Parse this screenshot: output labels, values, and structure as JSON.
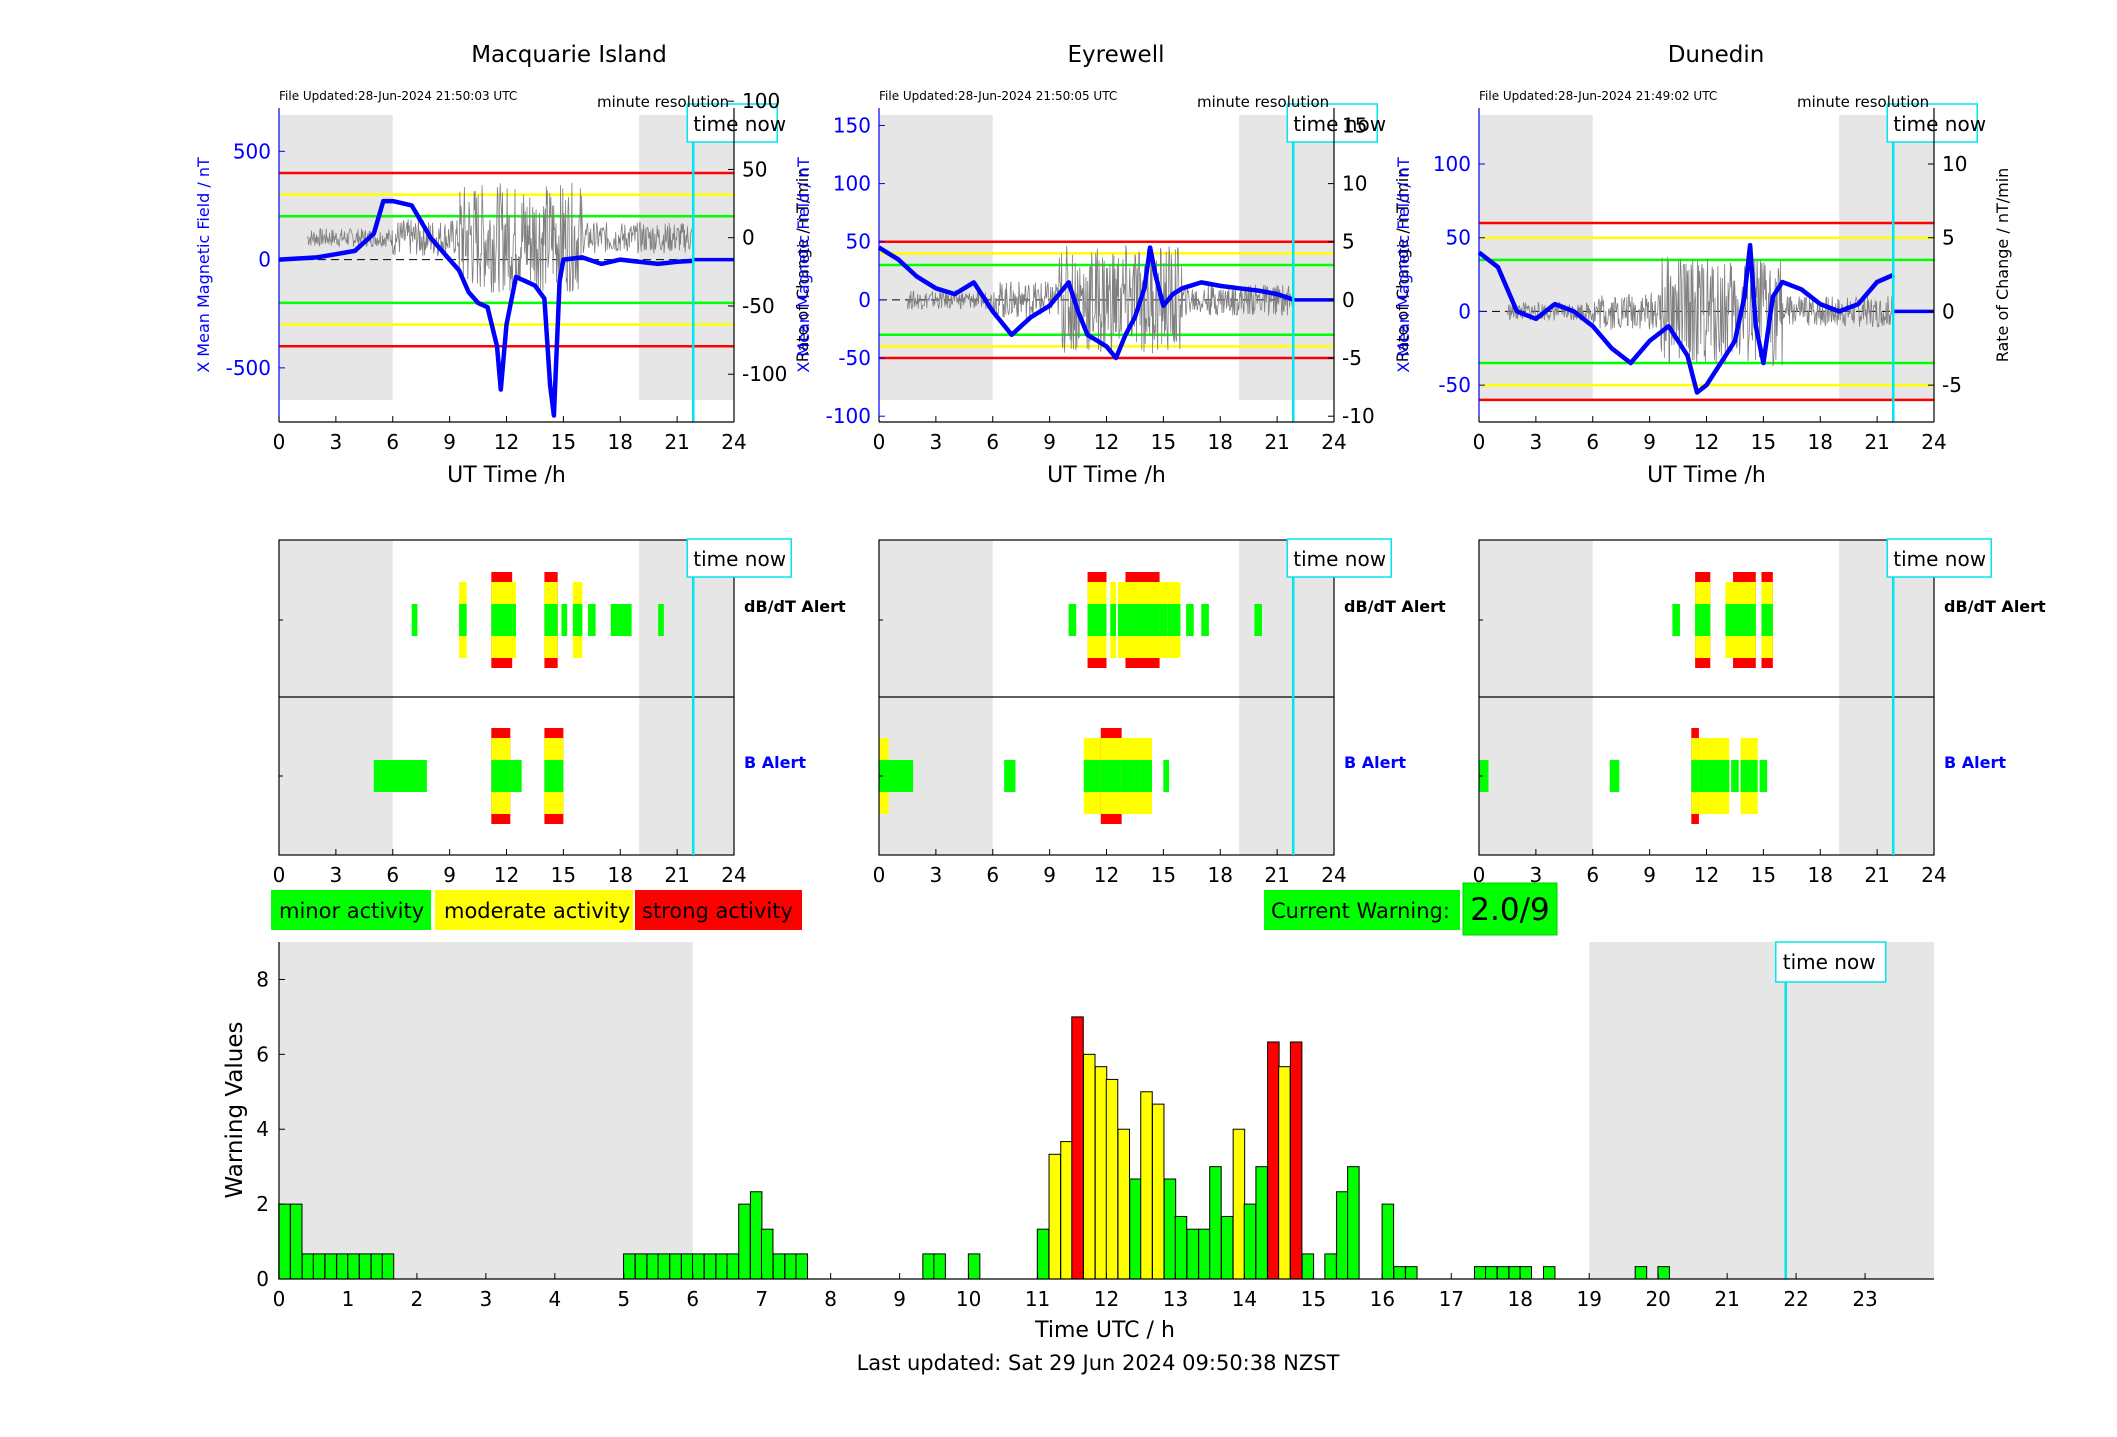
{
  "stations": [
    {
      "name": "Macquarie Island",
      "file_updated": "File Updated:28-Jun-2024 21:50:03 UTC",
      "resolution": "minute resolution",
      "time_now_label": "time now",
      "xlabel": "UT Time /h",
      "ylabel_left": "X Mean Magnetic Field / nT",
      "ylabel_right": "Rate of Change / nT/min",
      "left_ticks": [
        500,
        0,
        -500
      ],
      "right_ticks": [
        100,
        50,
        0,
        -50,
        -100
      ],
      "x_ticks": [
        0,
        3,
        6,
        9,
        12,
        15,
        18,
        21,
        24
      ]
    },
    {
      "name": "Eyrewell",
      "file_updated": "File Updated:28-Jun-2024 21:50:05 UTC",
      "resolution": "minute resolution",
      "time_now_label": "time now",
      "xlabel": "UT Time /h",
      "ylabel_left": "X Mean Magnetic Field / nT",
      "ylabel_right": "Rate of Change / nT/min",
      "left_ticks": [
        150,
        100,
        50,
        0,
        -50,
        -100
      ],
      "right_ticks": [
        15,
        10,
        5,
        0,
        -5,
        -10
      ],
      "x_ticks": [
        0,
        3,
        6,
        9,
        12,
        15,
        18,
        21,
        24
      ]
    },
    {
      "name": "Dunedin",
      "file_updated": "File Updated:28-Jun-2024 21:49:02 UTC",
      "resolution": "minute resolution",
      "time_now_label": "time now",
      "xlabel": "UT Time /h",
      "ylabel_left": "X Mean Magnetic Field / nT",
      "ylabel_right": "Rate of Change / nT/min",
      "left_ticks": [
        100,
        50,
        0,
        -50
      ],
      "right_ticks": [
        10,
        5,
        0,
        -5
      ],
      "x_ticks": [
        0,
        3,
        6,
        9,
        12,
        15,
        18,
        21,
        24
      ]
    }
  ],
  "alerts": {
    "dbdt_label": "dB/dT Alert",
    "b_label": "B Alert",
    "time_now_label": "time now"
  },
  "legend": {
    "minor": "minor activity",
    "moderate": "moderate activity",
    "strong": "strong activity"
  },
  "current_warning": {
    "label": "Current Warning:",
    "value": "2.0/9"
  },
  "footer": {
    "last_updated": "Last updated: Sat 29 Jun 2024 09:50:38 NZST"
  },
  "colors": {
    "minor": "#00ff00",
    "moderate": "#ffff00",
    "strong": "#ff0000",
    "time_now": "#00e5ee",
    "field": "#0000ff",
    "shade": "#e6e6e6"
  },
  "chart_data": [
    {
      "type": "line",
      "title": "Macquarie Island",
      "xlabel": "UT Time /h",
      "ylabel": "X Mean Magnetic Field / nT",
      "y2label": "Rate of Change / nT/min",
      "xlim": [
        0,
        24
      ],
      "ylim": [
        -750,
        700
      ],
      "y2lim": [
        -135,
        95
      ],
      "time_now": 21.85,
      "thresholds": {
        "red": 400,
        "yellow": 300,
        "green": 200
      },
      "x": [
        0,
        1,
        2,
        3,
        4,
        5,
        5.5,
        6,
        7,
        8,
        9,
        9.5,
        10,
        10.5,
        11,
        11.5,
        11.7,
        12,
        12.5,
        13,
        13.5,
        14,
        14.3,
        14.5,
        14.8,
        15,
        16,
        17,
        18,
        19,
        20,
        21,
        21.9
      ],
      "series": [
        {
          "values": [
            0,
            5,
            10,
            25,
            40,
            120,
            270,
            270,
            250,
            100,
            0,
            -50,
            -150,
            -200,
            -220,
            -400,
            -600,
            -300,
            -80,
            -100,
            -120,
            -180,
            -580,
            -720,
            -100,
            0,
            10,
            -20,
            0,
            -10,
            -20,
            -10,
            -5
          ]
        }
      ]
    },
    {
      "type": "line",
      "title": "Eyrewell",
      "xlabel": "UT Time /h",
      "ylabel": "X Mean Magnetic Field / nT",
      "y2label": "Rate of Change / nT/min",
      "xlim": [
        0,
        24
      ],
      "ylim": [
        -105,
        165
      ],
      "y2lim": [
        -10.5,
        16.5
      ],
      "time_now": 21.85,
      "thresholds": {
        "red": 50,
        "yellow": 40,
        "green": 30
      },
      "x": [
        0,
        0.5,
        1,
        2,
        3,
        4,
        5,
        6,
        6.5,
        7,
        8,
        9,
        10,
        10.5,
        11,
        11.5,
        12,
        12.5,
        13,
        13.5,
        14,
        14.3,
        14.6,
        15,
        15.5,
        16,
        17,
        18,
        19,
        20,
        21,
        21.9
      ],
      "series": [
        {
          "values": [
            45,
            40,
            35,
            20,
            10,
            5,
            15,
            -10,
            -20,
            -30,
            -15,
            -5,
            15,
            -10,
            -30,
            -35,
            -40,
            -50,
            -30,
            -15,
            10,
            45,
            20,
            -5,
            5,
            10,
            15,
            12,
            10,
            8,
            5,
            0
          ]
        }
      ]
    },
    {
      "type": "line",
      "title": "Dunedin",
      "xlabel": "UT Time /h",
      "ylabel": "X Mean Magnetic Field / nT",
      "y2label": "Rate of Change / nT/min",
      "xlim": [
        0,
        24
      ],
      "ylim": [
        -75,
        138
      ],
      "y2lim": [
        -7.5,
        13.8
      ],
      "time_now": 21.85,
      "thresholds": {
        "red": 60,
        "yellow": 50,
        "green": 35
      },
      "x": [
        0,
        0.5,
        1,
        2,
        3,
        4,
        5,
        6,
        7,
        8,
        9,
        10,
        10.5,
        11,
        11.5,
        12,
        12.5,
        13,
        13.5,
        14,
        14.3,
        14.6,
        15,
        15.5,
        16,
        17,
        18,
        19,
        20,
        21,
        21.9
      ],
      "series": [
        {
          "values": [
            40,
            35,
            30,
            0,
            -5,
            5,
            0,
            -10,
            -25,
            -35,
            -20,
            -10,
            -20,
            -30,
            -55,
            -50,
            -40,
            -30,
            -20,
            10,
            45,
            -10,
            -35,
            10,
            20,
            15,
            5,
            0,
            5,
            20,
            25
          ]
        }
      ]
    },
    {
      "type": "bar",
      "xlabel": "Time UTC / h",
      "ylabel": "Warning Values",
      "xlim": [
        0,
        24
      ],
      "ylim": [
        0,
        9
      ],
      "time_now": 21.85,
      "bar_width_h": 0.1667,
      "x": [
        0.08,
        0.25,
        0.42,
        0.58,
        0.75,
        0.92,
        1.08,
        1.25,
        1.42,
        1.58,
        5.08,
        5.25,
        5.42,
        5.58,
        5.75,
        5.92,
        6.08,
        6.25,
        6.42,
        6.58,
        6.75,
        6.92,
        7.08,
        7.25,
        7.42,
        7.58,
        9.42,
        9.58,
        10.08,
        11.08,
        11.25,
        11.42,
        11.58,
        11.75,
        11.92,
        12.08,
        12.25,
        12.42,
        12.58,
        12.75,
        12.92,
        13.08,
        13.25,
        13.42,
        13.58,
        13.75,
        13.92,
        14.08,
        14.25,
        14.42,
        14.58,
        14.75,
        14.92,
        15.25,
        15.42,
        15.58,
        16.08,
        16.25,
        16.42,
        17.42,
        17.58,
        17.75,
        17.92,
        18.08,
        18.42,
        19.75,
        20.08
      ],
      "values": [
        2,
        2,
        0.67,
        0.67,
        0.67,
        0.67,
        0.67,
        0.67,
        0.67,
        0.67,
        0.67,
        0.67,
        0.67,
        0.67,
        0.67,
        0.67,
        0.67,
        0.67,
        0.67,
        0.67,
        2,
        2.33,
        1.33,
        0.67,
        0.67,
        0.67,
        0.67,
        0.67,
        0.67,
        1.33,
        3.33,
        3.67,
        7,
        6,
        5.67,
        5.33,
        4,
        2.67,
        5,
        4.67,
        2.67,
        1.67,
        1.33,
        1.33,
        3,
        1.67,
        4,
        2,
        3,
        6.33,
        5.67,
        6.33,
        0.67,
        0.67,
        2.33,
        3,
        2,
        0.33,
        0.33,
        0.33,
        0.33,
        0.33,
        0.33,
        0.33,
        0.33,
        0.33,
        0.33
      ],
      "levels": [
        "g",
        "g",
        "g",
        "g",
        "g",
        "g",
        "g",
        "g",
        "g",
        "g",
        "g",
        "g",
        "g",
        "g",
        "g",
        "g",
        "g",
        "g",
        "g",
        "g",
        "g",
        "g",
        "g",
        "g",
        "g",
        "g",
        "g",
        "g",
        "g",
        "g",
        "y",
        "y",
        "r",
        "y",
        "y",
        "y",
        "y",
        "g",
        "y",
        "y",
        "g",
        "g",
        "g",
        "g",
        "g",
        "g",
        "y",
        "g",
        "g",
        "r",
        "y",
        "r",
        "g",
        "g",
        "g",
        "g",
        "g",
        "g",
        "g",
        "g",
        "g",
        "g",
        "g",
        "g",
        "g",
        "g",
        "g"
      ],
      "x_ticks": [
        0,
        1,
        2,
        3,
        4,
        5,
        6,
        7,
        8,
        9,
        10,
        11,
        12,
        13,
        14,
        15,
        16,
        17,
        18,
        19,
        20,
        21,
        22,
        23
      ],
      "y_ticks": [
        0,
        2,
        4,
        6,
        8
      ]
    }
  ]
}
